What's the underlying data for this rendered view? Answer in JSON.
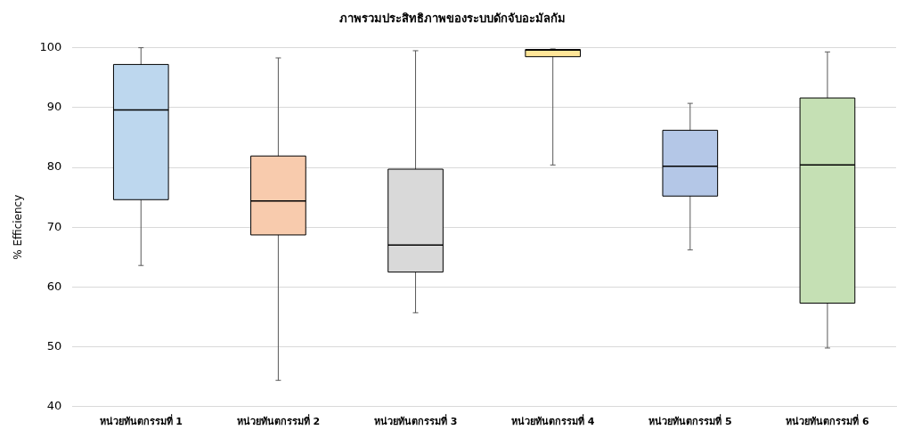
{
  "chart_data": {
    "type": "box",
    "title": "ภาพรวมประสิทธิภาพของระบบดักจับอะมัลกัม",
    "ylabel": "% Efficiency",
    "categories": [
      "หน่วยทันตกรรมที่ 1",
      "หน่วยทันตกรรมที่ 2",
      "หน่วยทันตกรรมที่ 3",
      "หน่วยทันตกรรมที่ 4",
      "หน่วยทันตกรรมที่ 5",
      "หน่วยทันตกรรมที่ 6"
    ],
    "boxes": [
      {
        "low": 63.6,
        "q1": 74.6,
        "median": 89.6,
        "q3": 97.2,
        "high": 100
      },
      {
        "low": 44.4,
        "q1": 68.7,
        "median": 74.4,
        "q3": 81.9,
        "high": 98.3
      },
      {
        "low": 55.7,
        "q1": 62.5,
        "median": 67,
        "q3": 79.7,
        "high": 99.5
      },
      {
        "low": 80.4,
        "q1": 98.5,
        "median": 99.6,
        "q3": 99.7,
        "high": 99.8
      },
      {
        "low": 66.2,
        "q1": 75.2,
        "median": 80.2,
        "q3": 86.2,
        "high": 90.7
      },
      {
        "low": 49.8,
        "q1": 57.3,
        "median": 80.4,
        "q3": 91.6,
        "high": 99.3
      }
    ],
    "colors": [
      "#bdd7ee",
      "#f8cbad",
      "#d9d9d9",
      "#ffe699",
      "#b4c7e7",
      "#c5e0b4"
    ],
    "ylim": [
      40,
      100
    ],
    "yticks": [
      40,
      50,
      60,
      70,
      80,
      90,
      100
    ],
    "grid": "y",
    "legend": false
  }
}
